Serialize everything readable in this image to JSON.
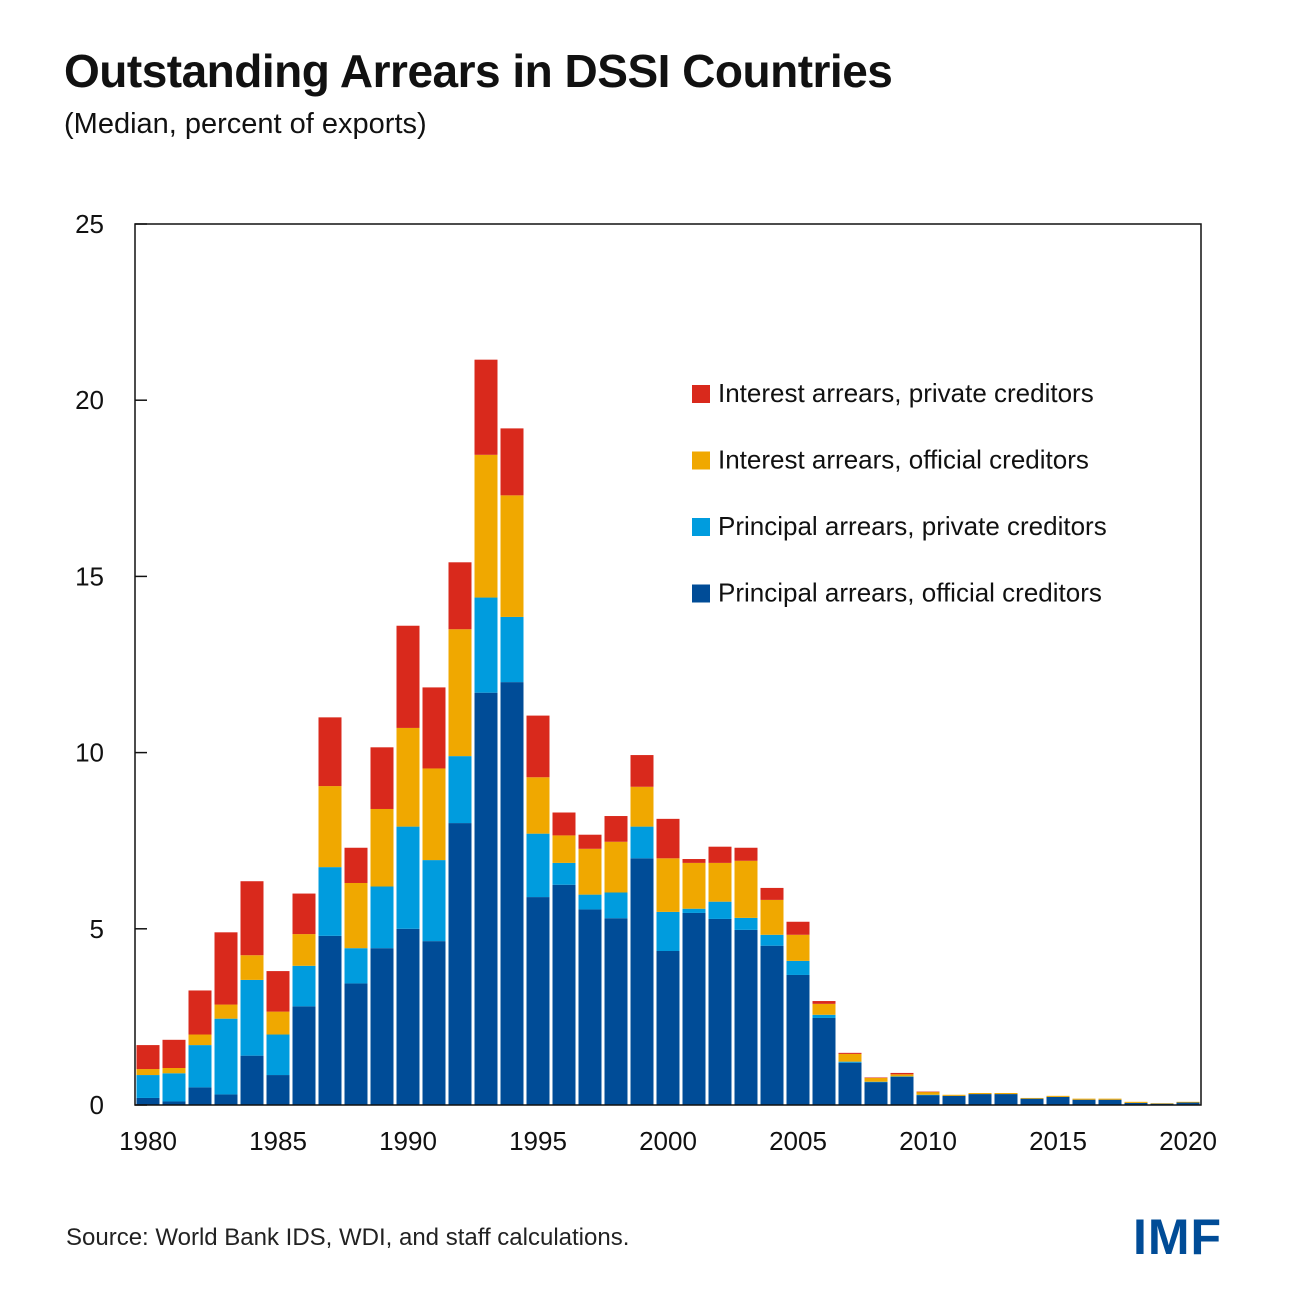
{
  "header": {
    "title": "Outstanding Arrears in DSSI Countries",
    "subtitle": "(Median, percent of exports)"
  },
  "footer": {
    "source": "Source: World Bank IDS, WDI, and staff calculations.",
    "logo_text": "IMF",
    "logo_color": "#004C97"
  },
  "chart_data": {
    "type": "bar",
    "stacked": true,
    "title": "Outstanding Arrears in DSSI Countries",
    "subtitle": "(Median, percent of exports)",
    "xlabel": "",
    "ylabel": "",
    "ylim": [
      0,
      25
    ],
    "yticks": [
      0,
      5,
      10,
      15,
      20,
      25
    ],
    "xtick_labels": [
      "1980",
      "1985",
      "1990",
      "1995",
      "2000",
      "2005",
      "2010",
      "2015",
      "2020"
    ],
    "grid": false,
    "legend_position": "upper-right",
    "categories": [
      "1980",
      "1981",
      "1982",
      "1983",
      "1984",
      "1985",
      "1986",
      "1987",
      "1988",
      "1989",
      "1990",
      "1991",
      "1992",
      "1993",
      "1994",
      "1995",
      "1996",
      "1997",
      "1998",
      "1999",
      "2000",
      "2001",
      "2002",
      "2003",
      "2004",
      "2005",
      "2006",
      "2007",
      "2008",
      "2009",
      "2010",
      "2011",
      "2012",
      "2013",
      "2014",
      "2015",
      "2016",
      "2017",
      "2018",
      "2019",
      "2020"
    ],
    "series": [
      {
        "name": "Principal arrears, official creditors",
        "color": "#004C97",
        "values": [
          0.2,
          0.1,
          0.5,
          0.3,
          1.4,
          0.85,
          2.8,
          4.8,
          3.45,
          4.45,
          5.0,
          4.65,
          8.0,
          11.7,
          12.0,
          5.9,
          6.25,
          5.55,
          5.3,
          7.0,
          4.37,
          5.45,
          5.28,
          4.97,
          4.52,
          3.69,
          2.47,
          1.2,
          0.65,
          0.8,
          0.28,
          0.26,
          0.31,
          0.31,
          0.18,
          0.23,
          0.15,
          0.15,
          0.06,
          0.04,
          0.07
        ]
      },
      {
        "name": "Principal arrears, private creditors",
        "color": "#009CDE",
        "values": [
          0.65,
          0.8,
          1.2,
          2.15,
          2.15,
          1.15,
          1.15,
          1.95,
          1.0,
          1.75,
          2.9,
          2.3,
          1.9,
          2.7,
          1.85,
          1.8,
          0.62,
          0.42,
          0.73,
          0.9,
          1.11,
          0.12,
          0.49,
          0.34,
          0.31,
          0.4,
          0.09,
          0.03,
          0.01,
          0.01,
          0.01,
          0,
          0,
          0,
          0,
          0,
          0,
          0,
          0,
          0,
          0
        ]
      },
      {
        "name": "Interest arrears, official creditors",
        "color": "#F0A800",
        "values": [
          0.17,
          0.15,
          0.3,
          0.4,
          0.7,
          0.65,
          0.9,
          2.3,
          1.85,
          2.2,
          2.8,
          2.6,
          3.6,
          4.05,
          3.45,
          1.6,
          0.78,
          1.3,
          1.44,
          1.13,
          1.52,
          1.3,
          1.1,
          1.62,
          0.99,
          0.74,
          0.31,
          0.22,
          0.11,
          0.06,
          0.08,
          0.03,
          0.03,
          0.03,
          0.02,
          0.03,
          0.03,
          0.03,
          0.03,
          0.01,
          0.02
        ]
      },
      {
        "name": "Interest arrears, private creditors",
        "color": "#D9291C",
        "values": [
          0.68,
          0.8,
          1.25,
          2.05,
          2.1,
          1.15,
          1.15,
          1.95,
          1.0,
          1.75,
          2.9,
          2.3,
          1.9,
          2.7,
          1.9,
          1.75,
          0.65,
          0.4,
          0.73,
          0.9,
          1.12,
          0.11,
          0.46,
          0.37,
          0.34,
          0.37,
          0.08,
          0.03,
          0.01,
          0.04,
          0.01,
          0,
          0,
          0,
          0,
          0,
          0,
          0,
          0,
          0,
          0
        ]
      }
    ],
    "legend": [
      {
        "label": "Interest arrears, private creditors",
        "color": "#D9291C"
      },
      {
        "label": "Interest arrears, official creditors",
        "color": "#F0A800"
      },
      {
        "label": "Principal arrears, private creditors",
        "color": "#009CDE"
      },
      {
        "label": "Principal arrears, official creditors",
        "color": "#004C97"
      }
    ]
  }
}
